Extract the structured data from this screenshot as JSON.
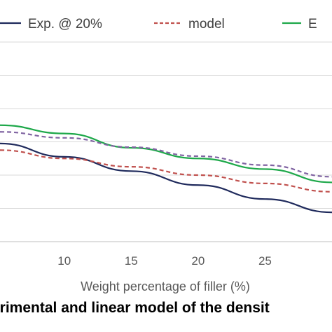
{
  "caption": "erimental and linear model of the densit",
  "chart_data": {
    "type": "line",
    "title": "",
    "xlabel": "Weight percentage of filler (%)",
    "ylabel": "",
    "xlim": [
      5.2,
      30
    ],
    "ylim": [
      0,
      6
    ],
    "x_ticks": [
      10,
      15,
      20,
      25
    ],
    "grid": true,
    "legend_position": "top",
    "series": [
      {
        "name": "Exp. @ 20%",
        "color": "#1f2a5c",
        "dash": "solid",
        "x": [
          5.2,
          10,
          15,
          20,
          25,
          30
        ],
        "y": [
          2.95,
          2.55,
          2.12,
          1.7,
          1.28,
          0.88
        ]
      },
      {
        "name": "model",
        "color": "#c0504d",
        "dash": "dashed",
        "x": [
          5.2,
          10,
          15,
          20,
          25,
          30
        ],
        "y": [
          2.75,
          2.5,
          2.25,
          2.0,
          1.75,
          1.5
        ]
      },
      {
        "name": "E",
        "color": "#1ea84a",
        "dash": "solid",
        "x": [
          5.2,
          10,
          15,
          20,
          25,
          30
        ],
        "y": [
          3.5,
          3.25,
          2.82,
          2.5,
          2.18,
          1.78
        ]
      },
      {
        "name": "",
        "color": "#8064a2",
        "dash": "dashed",
        "x": [
          5.2,
          10,
          15,
          20,
          25,
          30
        ],
        "y": [
          3.3,
          3.12,
          2.84,
          2.57,
          2.3,
          1.95
        ]
      }
    ]
  }
}
